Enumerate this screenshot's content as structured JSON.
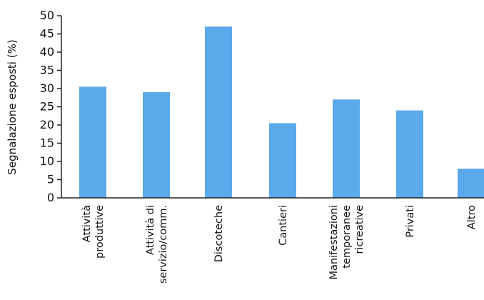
{
  "chart_data": {
    "type": "bar",
    "title": "",
    "xlabel": "",
    "ylabel": "Segnalazione esposti (%)",
    "ylim": [
      0,
      50
    ],
    "yticks": [
      0,
      5,
      10,
      15,
      20,
      25,
      30,
      35,
      40,
      45,
      50
    ],
    "grid": false,
    "bar_color": "#5aa9ea",
    "categories": [
      {
        "id": "attivita-produttive",
        "lines": [
          "Attività",
          "produttive"
        ]
      },
      {
        "id": "attivita-servizio",
        "lines": [
          "Attività di",
          "servizio/comm."
        ]
      },
      {
        "id": "discoteche",
        "lines": [
          "Discoteche"
        ]
      },
      {
        "id": "cantieri",
        "lines": [
          "Cantieri"
        ]
      },
      {
        "id": "manifestazioni",
        "lines": [
          "Manifestazioni",
          "temporanee",
          "ricreative"
        ]
      },
      {
        "id": "privati",
        "lines": [
          "Privati"
        ]
      },
      {
        "id": "altro",
        "lines": [
          "Altro"
        ]
      }
    ],
    "values": [
      30.5,
      29,
      47,
      20.5,
      27,
      24,
      8
    ]
  }
}
